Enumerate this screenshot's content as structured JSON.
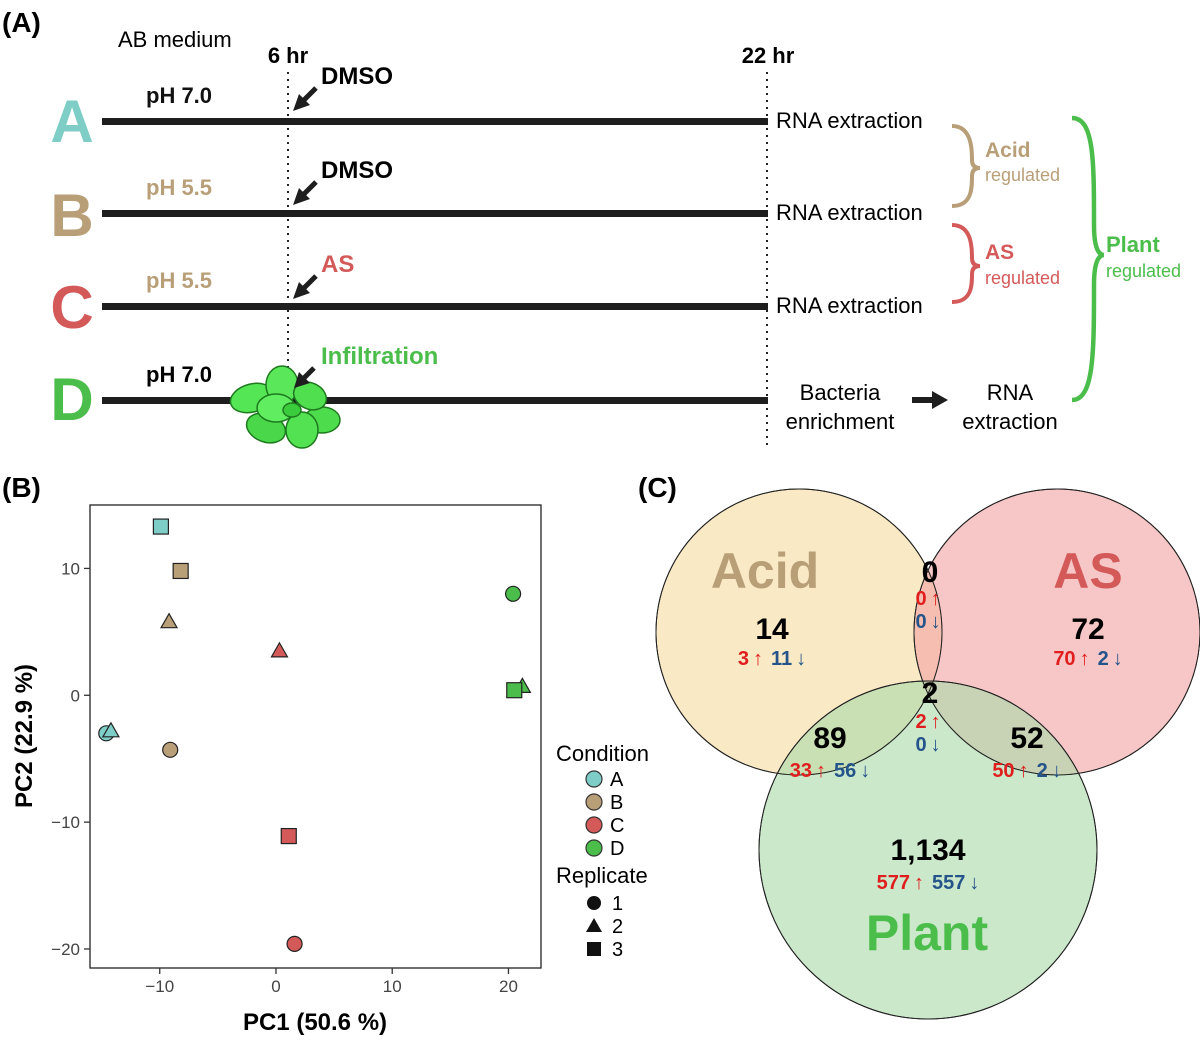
{
  "colors": {
    "A": "#7ecdc6",
    "B": "#b89f78",
    "C": "#d45a5a",
    "D": "#4bbd4b",
    "up": "#e01e1e",
    "down": "#24548a",
    "acid_fill": "#f7dfac",
    "as_fill": "#f2a1a1",
    "plant_fill": "#a8d9a8"
  },
  "panelA": {
    "label": "(A)",
    "medium": "AB medium",
    "t6": "6 hr",
    "t22": "22 hr",
    "rows": [
      {
        "letter": "A",
        "ph": "pH 7.0",
        "treatment": "DMSO",
        "end": "RNA extraction"
      },
      {
        "letter": "B",
        "ph": "pH 5.5",
        "treatment": "DMSO",
        "end": "RNA extraction"
      },
      {
        "letter": "C",
        "ph": "pH 5.5",
        "treatment": "AS",
        "end": "RNA extraction"
      },
      {
        "letter": "D",
        "ph": "pH 7.0",
        "treatment": "Infiltration",
        "end1": "Bacteria",
        "end2": "enrichment",
        "end3": "RNA",
        "end4": "extraction"
      }
    ],
    "braces": {
      "acid_title": "Acid",
      "acid_sub": "regulated",
      "as_title": "AS",
      "as_sub": "regulated",
      "plant_title": "Plant",
      "plant_sub": "regulated"
    }
  },
  "panelB": {
    "label": "(B)",
    "legend_condition": "Condition",
    "legend_replicate": "Replicate",
    "conditions": [
      "A",
      "B",
      "C",
      "D"
    ],
    "replicates": [
      "1",
      "2",
      "3"
    ]
  },
  "chart_data": {
    "type": "scatter",
    "xlabel": "PC1 (50.6 %)",
    "ylabel": "PC2 (22.9 %)",
    "xlim": [
      -16,
      22.8
    ],
    "ylim": [
      -21.5,
      15
    ],
    "xticks": [
      -10,
      0,
      10,
      20
    ],
    "yticks": [
      -20,
      -10,
      0,
      10
    ],
    "xtick_labels": [
      "−10",
      "0",
      "10",
      "20"
    ],
    "ytick_labels": [
      "−20",
      "−10",
      "0",
      "10"
    ],
    "points": [
      {
        "condition": "A",
        "replicate": "1",
        "x": -14.6,
        "y": -3.0
      },
      {
        "condition": "A",
        "replicate": "2",
        "x": -14.2,
        "y": -2.8
      },
      {
        "condition": "A",
        "replicate": "3",
        "x": -9.9,
        "y": 13.3
      },
      {
        "condition": "B",
        "replicate": "1",
        "x": -9.1,
        "y": -4.3
      },
      {
        "condition": "B",
        "replicate": "2",
        "x": -9.2,
        "y": 5.8
      },
      {
        "condition": "B",
        "replicate": "3",
        "x": -8.2,
        "y": 9.8
      },
      {
        "condition": "C",
        "replicate": "1",
        "x": 1.6,
        "y": -19.6
      },
      {
        "condition": "C",
        "replicate": "2",
        "x": 0.3,
        "y": 3.5
      },
      {
        "condition": "C",
        "replicate": "3",
        "x": 1.1,
        "y": -11.1
      },
      {
        "condition": "D",
        "replicate": "1",
        "x": 20.4,
        "y": 8.0
      },
      {
        "condition": "D",
        "replicate": "2",
        "x": 21.2,
        "y": 0.7
      },
      {
        "condition": "D",
        "replicate": "3",
        "x": 20.5,
        "y": 0.4
      }
    ]
  },
  "panelC": {
    "label": "(C)",
    "set_acid": "Acid",
    "set_as": "AS",
    "set_plant": "Plant",
    "regions": {
      "acid_only": {
        "total": "14",
        "up": "3",
        "down": "11"
      },
      "acid_as": {
        "total": "0",
        "up": "0",
        "down": "0"
      },
      "as_only": {
        "total": "72",
        "up": "70",
        "down": "2"
      },
      "center": {
        "total": "2",
        "up": "2",
        "down": "0"
      },
      "acid_plant": {
        "total": "89",
        "up": "33",
        "down": "56"
      },
      "as_plant": {
        "total": "52",
        "up": "50",
        "down": "2"
      },
      "plant_only": {
        "total": "1,134",
        "up": "577",
        "down": "557"
      }
    },
    "up_arrow": "↑",
    "down_arrow": "↓"
  }
}
